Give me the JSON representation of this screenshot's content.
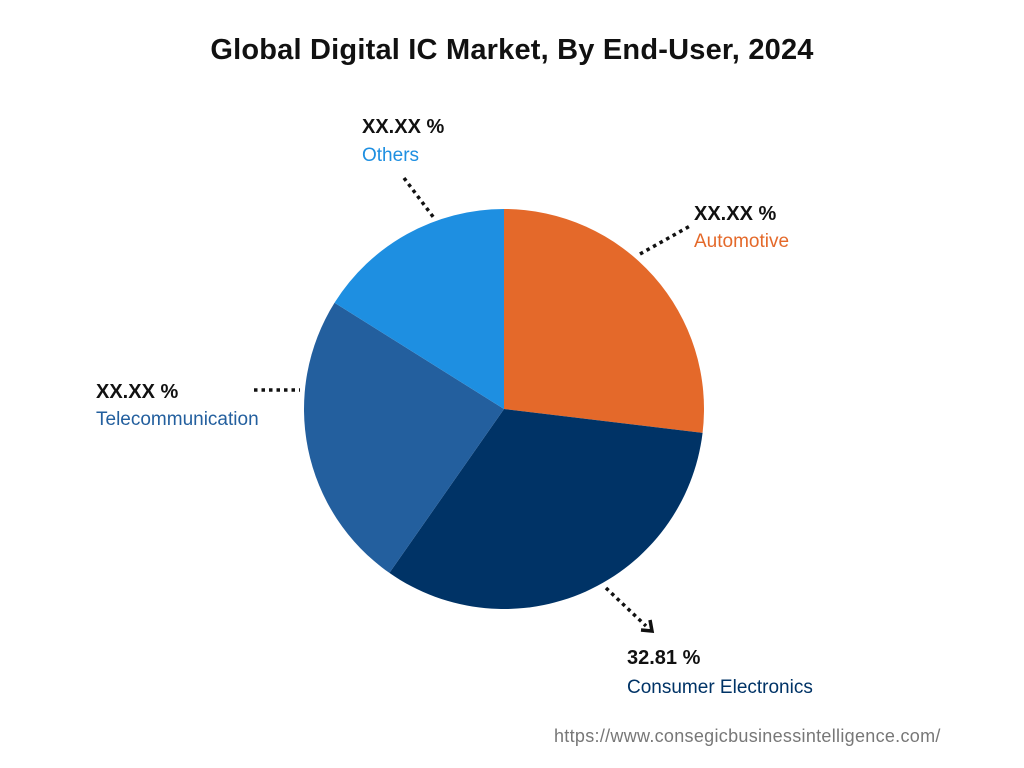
{
  "chart_data": {
    "type": "pie",
    "title": "Global Digital IC Market, By End-User, 2024",
    "slices": [
      {
        "name": "Automotive",
        "value": 26.9,
        "label": "XX.XX %",
        "color": "#E4692A"
      },
      {
        "name": "Consumer Electronics",
        "value": 32.81,
        "label": "32.81 %",
        "color": "#003366"
      },
      {
        "name": "Telecommunication",
        "value": 24.2,
        "label": "XX.XX %",
        "color": "#235F9E"
      },
      {
        "name": "Others",
        "value": 16.09,
        "label": "XX.XX %",
        "color": "#1E8FE1"
      }
    ],
    "start_angle": "top",
    "direction": "clockwise"
  },
  "footer": {
    "url": "https://www.consegicbusinessintelligence.com/"
  }
}
